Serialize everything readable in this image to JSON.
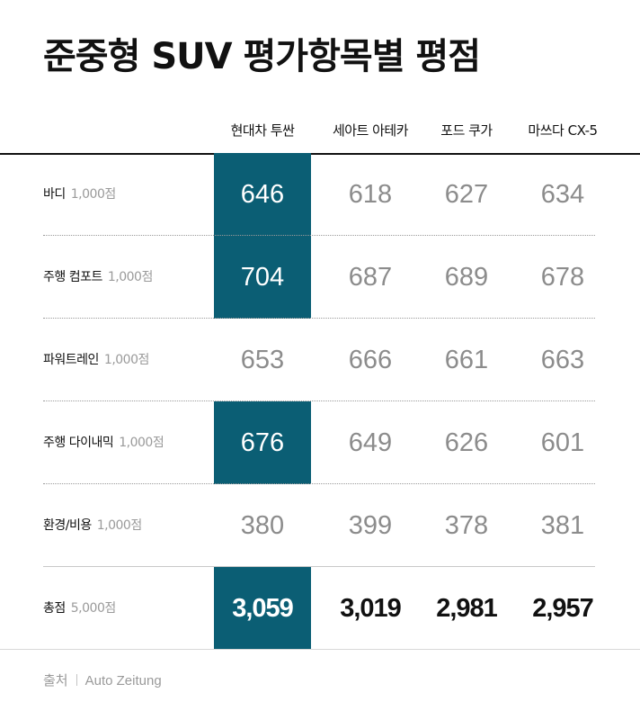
{
  "chart_data": {
    "type": "table",
    "title": "준중형 SUV 평가항목별 평점",
    "columns": [
      "현대차 투싼",
      "세아트 아테카",
      "포드 쿠가",
      "마쓰다 CX-5"
    ],
    "rows": [
      {
        "label": "바디",
        "max": "1,000점",
        "values": [
          "646",
          "618",
          "627",
          "634"
        ],
        "highlight": [
          true,
          false,
          false,
          false
        ]
      },
      {
        "label": "주행 컴포트",
        "max": "1,000점",
        "values": [
          "704",
          "687",
          "689",
          "678"
        ],
        "highlight": [
          true,
          false,
          false,
          false
        ]
      },
      {
        "label": "파워트레인",
        "max": "1,000점",
        "values": [
          "653",
          "666",
          "661",
          "663"
        ],
        "highlight": [
          false,
          false,
          false,
          false
        ]
      },
      {
        "label": "주행 다이내믹",
        "max": "1,000점",
        "values": [
          "676",
          "649",
          "626",
          "601"
        ],
        "highlight": [
          true,
          false,
          false,
          false
        ]
      },
      {
        "label": "환경/비용",
        "max": "1,000점",
        "values": [
          "380",
          "399",
          "378",
          "381"
        ],
        "highlight": [
          false,
          false,
          false,
          false
        ]
      },
      {
        "label": "총점",
        "max": "5,000점",
        "values": [
          "3,059",
          "3,019",
          "2,981",
          "2,957"
        ],
        "highlight": [
          true,
          false,
          false,
          false
        ],
        "total": true
      }
    ],
    "highlight_color": "#0b5e74"
  },
  "footer": {
    "source_label": "출처",
    "source_name": "Auto Zeitung"
  }
}
